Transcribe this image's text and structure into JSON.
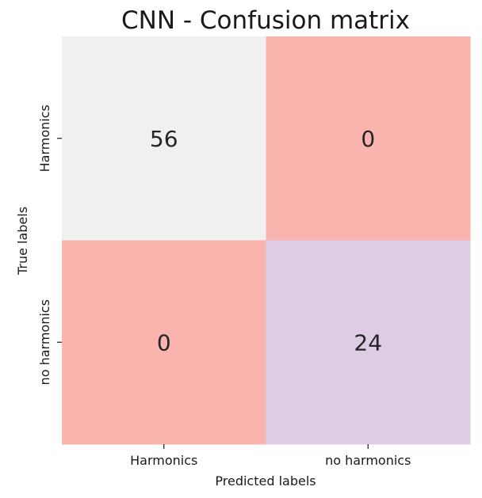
{
  "chart_data": {
    "type": "heatmap",
    "title": "CNN - Confusion matrix",
    "xlabel": "Predicted labels",
    "ylabel": "True labels",
    "x_categories": [
      "Harmonics",
      "no harmonics"
    ],
    "y_categories": [
      "Harmonics",
      "no harmonics"
    ],
    "values": [
      [
        56,
        0
      ],
      [
        0,
        24
      ]
    ],
    "cell_colors": [
      [
        "#f0f0f0",
        "#fab4ae"
      ],
      [
        "#fab4ae",
        "#decbe4"
      ]
    ],
    "colorbar": false
  }
}
